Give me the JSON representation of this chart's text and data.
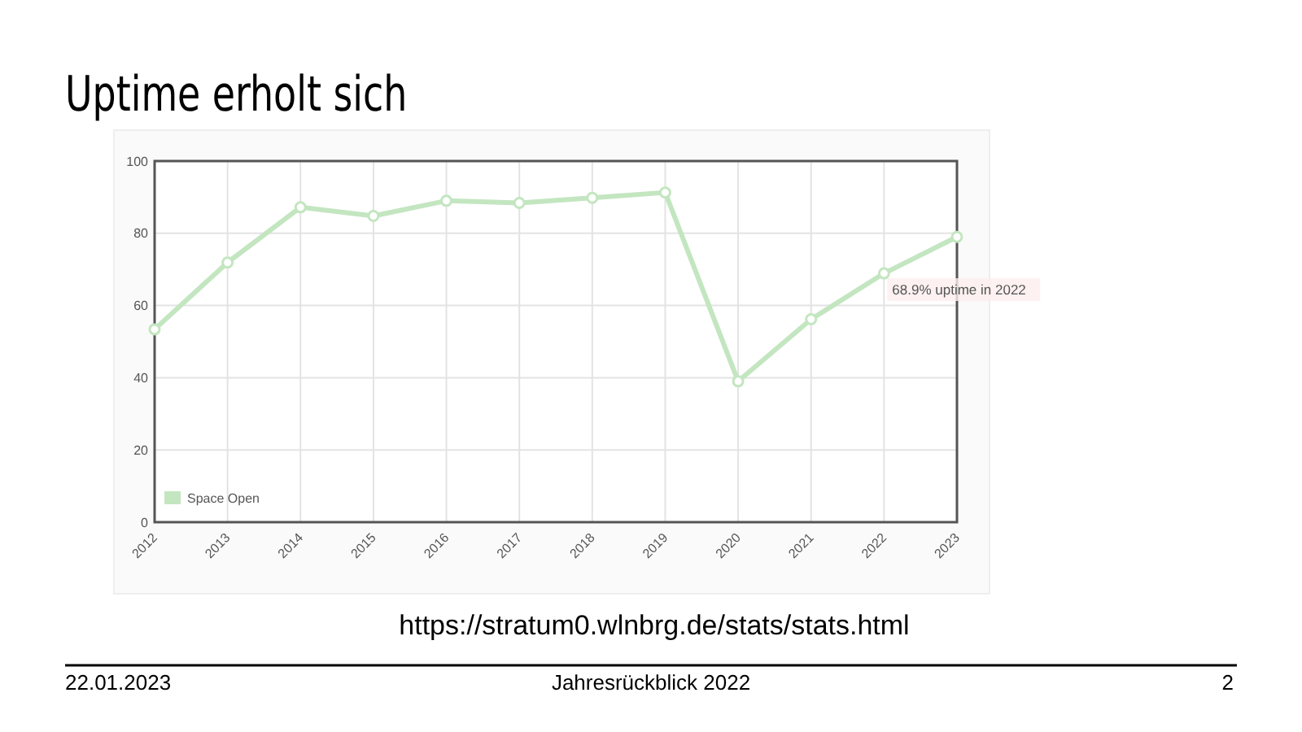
{
  "chart_data": {
    "type": "line",
    "title": "Uptime erholt sich",
    "categories": [
      "2012",
      "2013",
      "2014",
      "2015",
      "2016",
      "2017",
      "2018",
      "2019",
      "2020",
      "2021",
      "2022",
      "2023"
    ],
    "series": [
      {
        "name": "Space Open",
        "color": "#c3e6c0",
        "values": [
          53.4,
          71.9,
          87.2,
          84.8,
          89,
          88.4,
          89.8,
          91.3,
          39,
          56.2,
          68.9,
          79
        ]
      }
    ],
    "ylim": [
      0,
      100
    ],
    "yticks": [
      0,
      20,
      40,
      60,
      80,
      100
    ],
    "grid": true,
    "legend": "bottom left",
    "marker": "circle",
    "line_style": "solid",
    "annotations": [
      {
        "text": "68.9% uptime in 2022",
        "x": "2022",
        "y": 68.9
      },
      "https://stratum0.wlnbrg.de/stats/stats.html",
      "22.01.2023",
      "Jahresrückblick 2022",
      "2"
    ]
  }
}
